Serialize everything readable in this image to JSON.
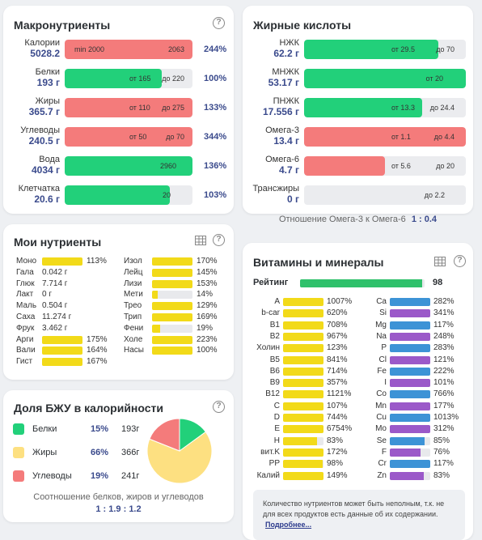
{
  "macro": {
    "title": "Макронутриенты",
    "help": "?",
    "rows": [
      {
        "name": "Калории",
        "value": "5028.2",
        "left": "min 2000",
        "right": "2063",
        "pct": "244%",
        "fill": 1.0,
        "color": "#f47b7b",
        "marker": 0.77
      },
      {
        "name": "Белки",
        "value": "193 г",
        "left": "от 165",
        "right": "до 220",
        "pct": "100%",
        "fill": 0.76,
        "color": "#22d07a",
        "marker": 0.53
      },
      {
        "name": "Жиры",
        "value": "365.7 г",
        "left": "от 110",
        "right": "до 275",
        "pct": "133%",
        "fill": 1.0,
        "color": "#f47b7b",
        "marker": 0.76
      },
      {
        "name": "Углеводы",
        "value": "240.5 г",
        "left": "от 50",
        "right": "до 70",
        "pct": "344%",
        "fill": 1.0,
        "color": "#f47b7b",
        "marker": 0.76
      },
      {
        "name": "Вода",
        "value": "4034 г",
        "left": "",
        "right": "2960",
        "pct": "136%",
        "fill": 1.0,
        "color": "#22d07a",
        "marker": 0.0
      },
      {
        "name": "Клетчатка",
        "value": "20.6 г",
        "left": "",
        "right": "20",
        "pct": "103%",
        "fill": 0.82,
        "color": "#22d07a",
        "marker": 0.0
      }
    ]
  },
  "fat": {
    "title": "Жирные кислоты",
    "rows": [
      {
        "name": "НЖК",
        "value": "62.2 г",
        "left": "от 29.5",
        "right": "до 70",
        "fill": 0.83,
        "color": "#22d07a"
      },
      {
        "name": "МНЖК",
        "value": "53.17 г",
        "left": "",
        "right": "от 20",
        "fill": 1.0,
        "color": "#22d07a"
      },
      {
        "name": "ПНЖК",
        "value": "17.556 г",
        "left": "от 13.3",
        "right": "до 24.4",
        "fill": 0.73,
        "color": "#22d07a"
      },
      {
        "name": "Омега-3",
        "value": "13.4 г",
        "left": "от 1.1",
        "right": "до 4.4",
        "fill": 1.0,
        "color": "#f47b7b"
      },
      {
        "name": "Омега-6",
        "value": "4.7 г",
        "left": "от 5.6",
        "right": "до 20",
        "fill": 0.5,
        "color": "#f47b7b"
      },
      {
        "name": "Трансжиры",
        "value": "0 г",
        "left": "",
        "right": "до 2.2",
        "fill": 0,
        "color": "#22d07a"
      }
    ],
    "ratio_label": "Отношение Омега-3 к Омега-6",
    "ratio_value": "1 : 0.4"
  },
  "my": {
    "title": "Мои нутриенты",
    "col1": [
      {
        "name": "Моно",
        "pct": "113%",
        "fill": 1.0
      },
      {
        "name": "Гала",
        "val": "0.042 г"
      },
      {
        "name": "Глюк",
        "val": "7.714 г"
      },
      {
        "name": "Лакт",
        "val": "0 г"
      },
      {
        "name": "Маль",
        "val": "0.504 г"
      },
      {
        "name": "Саха",
        "val": "11.274 г"
      },
      {
        "name": "Фрук",
        "val": "3.462 г"
      },
      {
        "name": "Арги",
        "pct": "175%",
        "fill": 1.0
      },
      {
        "name": "Вали",
        "pct": "164%",
        "fill": 1.0
      },
      {
        "name": "Гист",
        "pct": "167%",
        "fill": 1.0
      }
    ],
    "col2": [
      {
        "name": "Изол",
        "pct": "170%",
        "fill": 1.0
      },
      {
        "name": "Лейц",
        "pct": "145%",
        "fill": 1.0
      },
      {
        "name": "Лизи",
        "pct": "153%",
        "fill": 1.0
      },
      {
        "name": "Мети",
        "pct": "14%",
        "fill": 0.14
      },
      {
        "name": "Трео",
        "pct": "129%",
        "fill": 1.0
      },
      {
        "name": "Трип",
        "pct": "169%",
        "fill": 1.0
      },
      {
        "name": "Фени",
        "pct": "19%",
        "fill": 0.19
      },
      {
        "name": "Холе",
        "pct": "223%",
        "fill": 1.0
      },
      {
        "name": "Насы",
        "pct": "100%",
        "fill": 1.0
      }
    ]
  },
  "bju": {
    "title": "Доля БЖУ в калорийности",
    "rows": [
      {
        "name": "Белки",
        "pct": "15%",
        "val": "193г",
        "color": "#22d07a",
        "share": 15
      },
      {
        "name": "Жиры",
        "pct": "66%",
        "val": "366г",
        "color": "#fde081",
        "share": 66
      },
      {
        "name": "Углеводы",
        "pct": "19%",
        "val": "241г",
        "color": "#f47b7b",
        "share": 19
      }
    ],
    "ratio_label": "Соотношение белков, жиров и углеводов",
    "ratio_value": "1 : 1.9 : 1.2"
  },
  "vit": {
    "title": "Витамины и минералы",
    "rating_label": "Рейтинг",
    "rating_value": "98",
    "rating_fill": 0.98,
    "col1": [
      {
        "name": "A",
        "pct": "1007%",
        "fill": 1.0
      },
      {
        "name": "b-car",
        "pct": "620%",
        "fill": 1.0
      },
      {
        "name": "B1",
        "pct": "708%",
        "fill": 1.0
      },
      {
        "name": "B2",
        "pct": "967%",
        "fill": 1.0
      },
      {
        "name": "Холин",
        "pct": "123%",
        "fill": 1.0
      },
      {
        "name": "B5",
        "pct": "841%",
        "fill": 1.0
      },
      {
        "name": "B6",
        "pct": "714%",
        "fill": 1.0
      },
      {
        "name": "B9",
        "pct": "357%",
        "fill": 1.0
      },
      {
        "name": "B12",
        "pct": "1121%",
        "fill": 1.0
      },
      {
        "name": "C",
        "pct": "107%",
        "fill": 1.0
      },
      {
        "name": "D",
        "pct": "744%",
        "fill": 1.0
      },
      {
        "name": "E",
        "pct": "6754%",
        "fill": 1.0
      },
      {
        "name": "H",
        "pct": "83%",
        "fill": 0.83
      },
      {
        "name": "вит.K",
        "pct": "172%",
        "fill": 1.0
      },
      {
        "name": "PP",
        "pct": "98%",
        "fill": 0.98
      },
      {
        "name": "Калий",
        "pct": "149%",
        "fill": 1.0
      }
    ],
    "col2": [
      {
        "name": "Ca",
        "pct": "282%",
        "fill": 1.0
      },
      {
        "name": "Si",
        "pct": "341%",
        "fill": 1.0
      },
      {
        "name": "Mg",
        "pct": "117%",
        "fill": 1.0
      },
      {
        "name": "Na",
        "pct": "248%",
        "fill": 1.0
      },
      {
        "name": "P",
        "pct": "283%",
        "fill": 1.0
      },
      {
        "name": "Cl",
        "pct": "121%",
        "fill": 1.0
      },
      {
        "name": "Fe",
        "pct": "222%",
        "fill": 1.0
      },
      {
        "name": "I",
        "pct": "101%",
        "fill": 1.0
      },
      {
        "name": "Co",
        "pct": "766%",
        "fill": 1.0
      },
      {
        "name": "Mn",
        "pct": "177%",
        "fill": 1.0
      },
      {
        "name": "Cu",
        "pct": "1013%",
        "fill": 1.0
      },
      {
        "name": "Mo",
        "pct": "312%",
        "fill": 1.0
      },
      {
        "name": "Se",
        "pct": "85%",
        "fill": 0.85
      },
      {
        "name": "F",
        "pct": "76%",
        "fill": 0.76
      },
      {
        "name": "Cr",
        "pct": "117%",
        "fill": 1.0
      },
      {
        "name": "Zn",
        "pct": "83%",
        "fill": 0.83
      }
    ],
    "note": "Количество нутриентов может быть неполным, т.к. не для всех продуктов есть данные об их содержании.",
    "note_link": "Подробнее..."
  },
  "colors": {
    "green": "#22d07a",
    "red": "#f47b7b",
    "yellow": "#f2da19",
    "blue": "#3d93d6",
    "purple": "#9b59c9",
    "rating": "#2fc16b"
  }
}
